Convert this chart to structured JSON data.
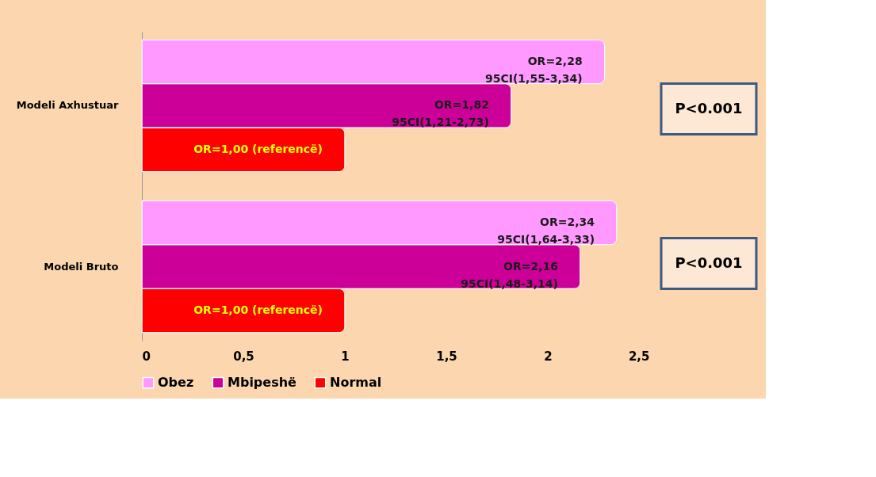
{
  "chart_data": {
    "type": "bar",
    "orientation": "horizontal",
    "categories": [
      "Modeli Axhustuar",
      "Modeli Bruto"
    ],
    "series": [
      {
        "name": "Obez",
        "color": "#ff99ff",
        "values": [
          2.28,
          2.34
        ],
        "value_labels": [
          "OR=2,28\n95CI(1,55-3,34)",
          "OR=2,34\n95CI(1,64-3,33)"
        ]
      },
      {
        "name": "Mbipeshë",
        "color": "#cc0099",
        "values": [
          1.82,
          2.16
        ],
        "value_labels": [
          "OR=1,82\n95CI(1,21-2,73)",
          "OR=2,16\n95CI(1,48-3,14)"
        ]
      },
      {
        "name": "Normal",
        "color": "#ff0000",
        "values": [
          1.0,
          1.0
        ],
        "value_labels": [
          "OR=1,00 (referencë)",
          "OR=1,00 (referencë)"
        ]
      }
    ],
    "xlim": [
      0,
      2.5
    ],
    "xticks": [
      0,
      {
        "value": 0.5,
        "label": "0,5"
      },
      1,
      {
        "value": 1.5,
        "label": "1,5"
      },
      2,
      {
        "value": 2.5,
        "label": "2,5"
      }
    ],
    "annotations": [
      "P<0.001",
      "P<0.001"
    ],
    "grid": false,
    "legend": "bottom"
  }
}
